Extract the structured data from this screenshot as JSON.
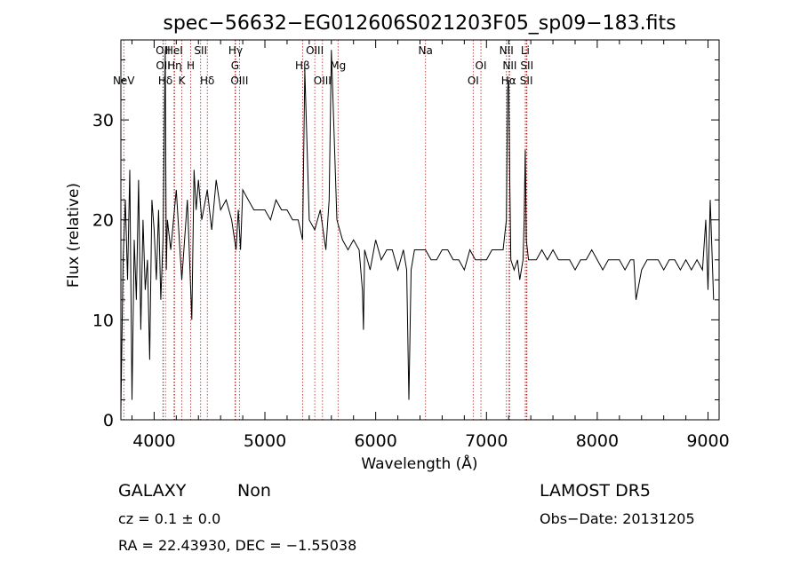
{
  "chart_data": {
    "type": "line",
    "title": "spec−56632−EG012606S021203F05_sp09−183.fits",
    "xlabel": "Wavelength (Å)",
    "ylabel": "Flux (relative)",
    "xlim": [
      3700,
      9100
    ],
    "ylim": [
      0,
      38
    ],
    "x_ticks": [
      4000,
      5000,
      6000,
      7000,
      8000,
      9000
    ],
    "y_ticks": [
      0,
      10,
      20,
      30
    ],
    "grid": false,
    "colors": {
      "spectrum": "#000000",
      "marker": "#b22222",
      "axes": "#000000"
    },
    "series": [
      {
        "x": [
          3700,
          3720,
          3740,
          3760,
          3780,
          3800,
          3820,
          3840,
          3860,
          3880,
          3900,
          3920,
          3940,
          3960,
          3980,
          4000,
          4020,
          4040,
          4060,
          4080,
          4100,
          4110,
          4120,
          4150,
          4200,
          4250,
          4300,
          4340,
          4360,
          4380,
          4400,
          4430,
          4480,
          4520,
          4560,
          4600,
          4650,
          4700,
          4740,
          4760,
          4780,
          4800,
          4850,
          4900,
          5000,
          5050,
          5100,
          5150,
          5200,
          5250,
          5300,
          5340,
          5360,
          5400,
          5450,
          5500,
          5550,
          5580,
          5600,
          5650,
          5700,
          5750,
          5800,
          5850,
          5880,
          5890,
          5900,
          5950,
          6000,
          6050,
          6100,
          6150,
          6200,
          6250,
          6280,
          6300,
          6320,
          6350,
          6400,
          6450,
          6500,
          6550,
          6600,
          6650,
          6700,
          6750,
          6800,
          6850,
          6900,
          6950,
          7000,
          7050,
          7100,
          7150,
          7180,
          7190,
          7200,
          7210,
          7220,
          7250,
          7280,
          7300,
          7330,
          7340,
          7350,
          7360,
          7380,
          7400,
          7450,
          7500,
          7550,
          7600,
          7650,
          7700,
          7750,
          7800,
          7850,
          7900,
          7950,
          8000,
          8050,
          8100,
          8150,
          8200,
          8250,
          8300,
          8330,
          8350,
          8400,
          8450,
          8500,
          8550,
          8600,
          8650,
          8700,
          8750,
          8800,
          8850,
          8900,
          8950,
          8980,
          9000,
          9020,
          9050
        ],
        "y": [
          1,
          16,
          22,
          14,
          25,
          2,
          18,
          12,
          24,
          9,
          20,
          13,
          16,
          6,
          22,
          19,
          14,
          21,
          12,
          18,
          37,
          15,
          20,
          17,
          23,
          14,
          22,
          10,
          25,
          21,
          24,
          20,
          23,
          19,
          24,
          21,
          22,
          20,
          17,
          21,
          17,
          23,
          22,
          21,
          21,
          20,
          22,
          21,
          21,
          20,
          20,
          18,
          35,
          20,
          19,
          21,
          17,
          22,
          37,
          20,
          18,
          17,
          18,
          17,
          13,
          9,
          17,
          15,
          18,
          16,
          17,
          17,
          15,
          17,
          15,
          2,
          15,
          17,
          17,
          17,
          16,
          16,
          17,
          17,
          16,
          16,
          15,
          17,
          16,
          16,
          16,
          17,
          17,
          17,
          20,
          33,
          34,
          24,
          16,
          15,
          16,
          14,
          16,
          20,
          27,
          18,
          16,
          16,
          16,
          17,
          16,
          17,
          16,
          16,
          16,
          15,
          16,
          16,
          17,
          16,
          15,
          16,
          16,
          16,
          15,
          16,
          16,
          12,
          15,
          16,
          16,
          16,
          15,
          16,
          16,
          15,
          16,
          15,
          16,
          15,
          20,
          13,
          22,
          12
        ]
      }
    ],
    "spectral_lines": [
      {
        "label": "NeV",
        "x": 3726,
        "row": 3
      },
      {
        "label": "OII",
        "x": 4080,
        "row": 1
      },
      {
        "label": "OII",
        "x": 4082,
        "row": 2
      },
      {
        "label": "Hδ",
        "x": 4102,
        "row": 3
      },
      {
        "label": "HeI",
        "x": 4180,
        "row": 1
      },
      {
        "label": "Hη",
        "x": 4185,
        "row": 2
      },
      {
        "label": "K",
        "x": 4250,
        "row": 3
      },
      {
        "label": "H",
        "x": 4330,
        "row": 2
      },
      {
        "label": "SII",
        "x": 4420,
        "row": 1
      },
      {
        "label": "Hδ",
        "x": 4480,
        "row": 3
      },
      {
        "label": "Hγ",
        "x": 4735,
        "row": 1
      },
      {
        "label": "G",
        "x": 4730,
        "row": 2
      },
      {
        "label": "OIII",
        "x": 4770,
        "row": 3
      },
      {
        "label": "Hβ",
        "x": 5340,
        "row": 2
      },
      {
        "label": "OIII",
        "x": 5450,
        "row": 1
      },
      {
        "label": "OIII",
        "x": 5520,
        "row": 3
      },
      {
        "label": "Mg",
        "x": 5660,
        "row": 2
      },
      {
        "label": "Na",
        "x": 6450,
        "row": 1
      },
      {
        "label": "OI",
        "x": 6950,
        "row": 2
      },
      {
        "label": "OI",
        "x": 6880,
        "row": 3
      },
      {
        "label": "NII",
        "x": 7180,
        "row": 1
      },
      {
        "label": "NII",
        "x": 7210,
        "row": 2
      },
      {
        "label": "Hα",
        "x": 7200,
        "row": 3
      },
      {
        "label": "Li",
        "x": 7350,
        "row": 1
      },
      {
        "label": "SII",
        "x": 7365,
        "row": 2
      },
      {
        "label": "SII",
        "x": 7360,
        "row": 3
      }
    ]
  },
  "info": {
    "class": "GALAXY",
    "subclass": "Non",
    "cz": "cz = 0.1 ± 0.0",
    "coords": "RA =  22.43930, DEC =  −1.55038",
    "survey": "LAMOST DR5",
    "obs_date": "Obs−Date: 20131205"
  }
}
